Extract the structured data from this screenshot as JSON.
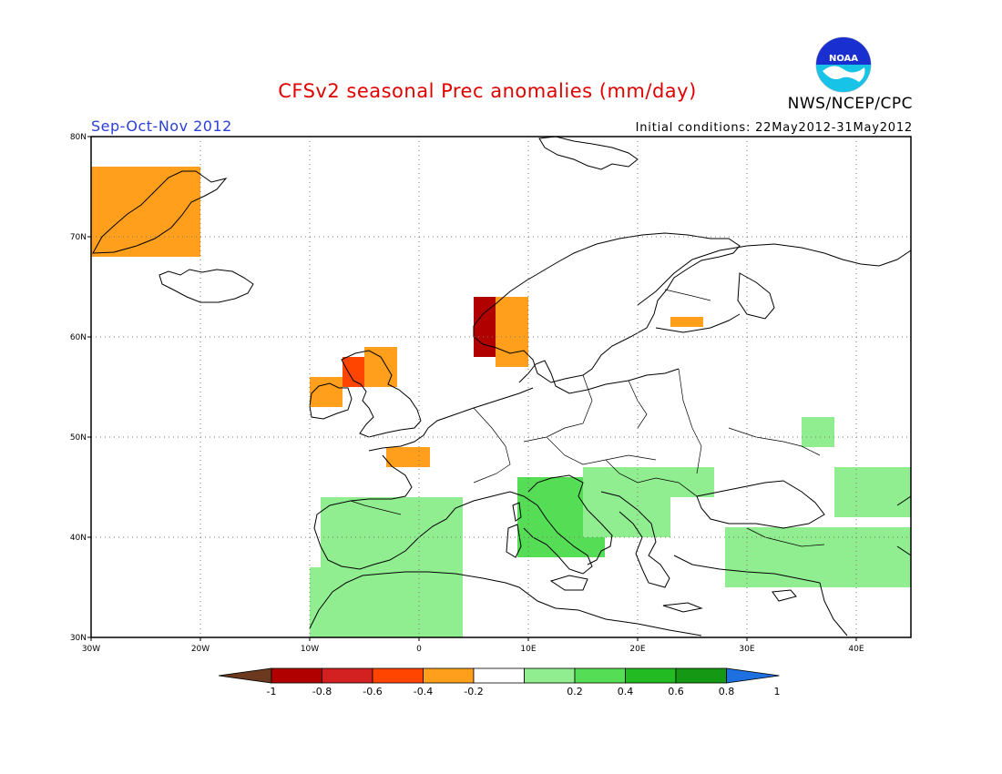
{
  "title": "CFSv2 seasonal Prec anomalies (mm/day)",
  "organization": "NWS/NCEP/CPC",
  "logo_text": "NOAA",
  "season": "Sep-Oct-Nov 2012",
  "initial_conditions": "Initial conditions: 22May2012-31May2012",
  "axes": {
    "lat_labels": [
      "80N",
      "70N",
      "60N",
      "50N",
      "40N",
      "30N"
    ],
    "lon_labels": [
      "30W",
      "20W",
      "10W",
      "0",
      "10E",
      "20E",
      "30E",
      "40E"
    ]
  },
  "colorbar": {
    "labels": [
      "-1",
      "-0.8",
      "-0.6",
      "-0.4",
      "-0.2",
      "0.2",
      "0.4",
      "0.6",
      "0.8",
      "1"
    ],
    "colors": [
      "#6b3a1e",
      "#b00000",
      "#d32020",
      "#ff4500",
      "#ff9f1c",
      "#ffffff",
      "#90ee90",
      "#55dd55",
      "#22bb22",
      "#159915",
      "#1e6fe0"
    ]
  },
  "chart_data": {
    "type": "heatmap",
    "title": "CFSv2 seasonal Prec anomalies (mm/day)",
    "units": "mm/day",
    "lon_range": [
      -30,
      45
    ],
    "lat_range": [
      30,
      80
    ],
    "anomaly_regions": [
      {
        "region": "Iceland/Greenland coast",
        "lon": [
          -30,
          -21
        ],
        "lat": [
          68,
          76
        ],
        "value": -0.3
      },
      {
        "region": "Western Norway",
        "lon": [
          5,
          8
        ],
        "lat": [
          58,
          63
        ],
        "value": -0.9
      },
      {
        "region": "Western Norway fringe",
        "lon": [
          7,
          9
        ],
        "lat": [
          57,
          63
        ],
        "value": -0.3
      },
      {
        "region": "Northern Ireland",
        "lon": [
          -7,
          -4
        ],
        "lat": [
          55,
          57
        ],
        "value": -0.5
      },
      {
        "region": "Scotland",
        "lon": [
          -5,
          -3
        ],
        "lat": [
          55,
          58
        ],
        "value": -0.3
      },
      {
        "region": "Ireland south",
        "lon": [
          -10,
          -8
        ],
        "lat": [
          53,
          55
        ],
        "value": -0.3
      },
      {
        "region": "Brittany",
        "lon": [
          -3,
          0
        ],
        "lat": [
          47,
          48
        ],
        "value": -0.3
      },
      {
        "region": "Finland",
        "lon": [
          23,
          25
        ],
        "lat": [
          61,
          61
        ],
        "value": -0.3
      },
      {
        "region": "Iberia",
        "lon": [
          -9,
          3
        ],
        "lat": [
          36,
          43
        ],
        "value": 0.3
      },
      {
        "region": "Morocco",
        "lon": [
          -10,
          3
        ],
        "lat": [
          30,
          36
        ],
        "value": 0.3
      },
      {
        "region": "Italy",
        "lon": [
          9,
          16
        ],
        "lat": [
          38,
          45
        ],
        "value": 0.4
      },
      {
        "region": "Balkans",
        "lon": [
          15,
          22
        ],
        "lat": [
          40,
          46
        ],
        "value": 0.3
      },
      {
        "region": "Romania",
        "lon": [
          21,
          26
        ],
        "lat": [
          44,
          46
        ],
        "value": 0.3
      },
      {
        "region": "Turkey",
        "lon": [
          28,
          44
        ],
        "lat": [
          35,
          40
        ],
        "value": 0.3
      },
      {
        "region": "Caucasus",
        "lon": [
          38,
          44
        ],
        "lat": [
          42,
          46
        ],
        "value": 0.3
      },
      {
        "region": "Ukraine",
        "lon": [
          35,
          37
        ],
        "lat": [
          49,
          51
        ],
        "value": 0.2
      }
    ]
  }
}
